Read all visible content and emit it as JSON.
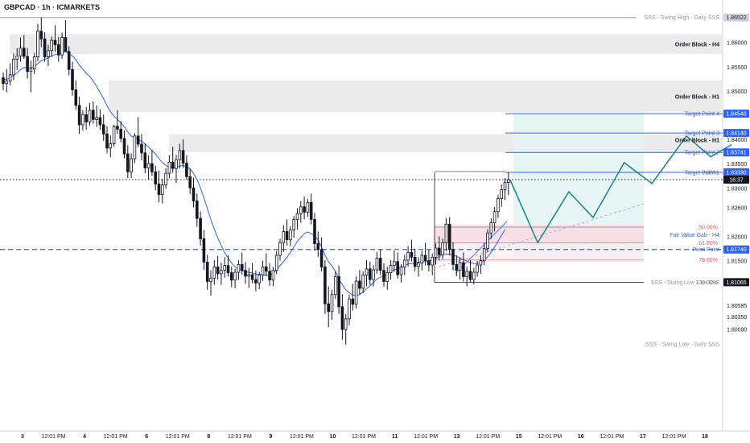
{
  "chart_data": {
    "type": "candlestick",
    "title": "GBPCAD · 1h · ICMARKETS",
    "current_time_label": "16:37",
    "colors": {
      "candle": "#131722",
      "ma_line": "#2962ff",
      "zone_gray": "#ebebeb",
      "zone_pink": "#f7dde3",
      "target_line": "#2962ff",
      "projection": "#138484",
      "target_box": "#e3f4f2",
      "pivot_line": "#2962ff",
      "fib_text": "#f7525f"
    },
    "y_axis": {
      "range": [
        1.78,
        1.8665
      ],
      "ticks": [
        "1.86000",
        "1.85500",
        "1.85000",
        "1.84500",
        "1.84000",
        "1.83500",
        "1.83000",
        "1.82600",
        "1.82000",
        "1.81500",
        "1.81065",
        "1.80585",
        "1.80350",
        "1.80090"
      ]
    },
    "x_axis": {
      "ticks": [
        "3",
        "12:01 PM",
        "4",
        "12:01 PM",
        "6",
        "12:01 PM",
        "8",
        "12:01 PM",
        "9",
        "12:01 PM",
        "10",
        "12:01 PM",
        "11",
        "12:01 PM",
        "13",
        "12:01 PM",
        "15",
        "12:01 PM",
        "16",
        "12:01 PM",
        "17",
        "12:01 PM",
        "18"
      ]
    },
    "price_badges": [
      {
        "value": "1.86522",
        "kind": "gray"
      },
      {
        "value": "1.84540",
        "kind": "blue"
      },
      {
        "value": "1.84140",
        "kind": "blue"
      },
      {
        "value": "1.83741",
        "kind": "blue"
      },
      {
        "value": "1.83330",
        "kind": "blue"
      },
      {
        "value": "16:37",
        "kind": "dark"
      },
      {
        "value": "1.81740",
        "kind": "blue"
      },
      {
        "value": "1.81065",
        "kind": "dark"
      }
    ],
    "annotations": [
      {
        "text": "SSS - Swing High - Daily SSS",
        "kind": "level",
        "price": 1.86522
      },
      {
        "text": "Order Block - H4",
        "kind": "zone",
        "range": [
          1.8577,
          1.8618
        ]
      },
      {
        "text": "Order Block - H1",
        "kind": "zone",
        "range": [
          1.8457,
          1.8522
        ]
      },
      {
        "text": "Target Point 4",
        "kind": "target",
        "price": 1.8454
      },
      {
        "text": "Target Point 3",
        "kind": "target",
        "price": 1.8414
      },
      {
        "text": "Order Block - H1",
        "kind": "zone",
        "range": [
          1.8375,
          1.8412
        ]
      },
      {
        "text": "Target Point 2",
        "kind": "target",
        "price": 1.83741
      },
      {
        "text": "Target Point 1",
        "kind": "target",
        "price": 1.8333
      },
      {
        "text": "0.00%",
        "kind": "fib",
        "price": 1.8333
      },
      {
        "text": "50.00%",
        "kind": "fib",
        "price": 1.822
      },
      {
        "text": "Fair Value Gab - H4",
        "kind": "fvg",
        "range": [
          1.8186,
          1.8224
        ]
      },
      {
        "text": "61.80%",
        "kind": "fib",
        "price": 1.8188
      },
      {
        "text": "Pivot Point",
        "kind": "pivot",
        "price": 1.8174
      },
      {
        "text": "78.60%",
        "kind": "fib",
        "price": 1.8153
      },
      {
        "text": "SSS - Swing Low - 1H SSS",
        "kind": "level",
        "price": 1.81065
      },
      {
        "text": "100.00%",
        "kind": "fib",
        "price": 1.81065
      },
      {
        "text": "SSS - Swing Low - Daily SSS",
        "kind": "level",
        "price": 1.7982
      }
    ],
    "projection_path": [
      {
        "bar": 0,
        "price": 1.8318
      },
      {
        "bar": 8,
        "price": 1.8188
      },
      {
        "bar": 17,
        "price": 1.8293
      },
      {
        "bar": 24,
        "price": 1.824
      },
      {
        "bar": 33,
        "price": 1.8353
      },
      {
        "bar": 41,
        "price": 1.831
      },
      {
        "bar": 51,
        "price": 1.8408
      },
      {
        "bar": 58,
        "price": 1.8365
      },
      {
        "bar": 64,
        "price": 1.839
      }
    ],
    "candles_ohlc": [
      [
        1.8528,
        1.8539,
        1.8502,
        1.8516
      ],
      [
        1.8516,
        1.8546,
        1.8498,
        1.8521
      ],
      [
        1.8521,
        1.8558,
        1.8512,
        1.8534
      ],
      [
        1.8534,
        1.8578,
        1.8523,
        1.8566
      ],
      [
        1.8566,
        1.8589,
        1.8544,
        1.8573
      ],
      [
        1.8573,
        1.8611,
        1.8561,
        1.8589
      ],
      [
        1.8589,
        1.8616,
        1.8567,
        1.8572
      ],
      [
        1.8572,
        1.8589,
        1.8526,
        1.8541
      ],
      [
        1.8541,
        1.8563,
        1.8498,
        1.8546
      ],
      [
        1.8546,
        1.8579,
        1.8536,
        1.8571
      ],
      [
        1.8571,
        1.8639,
        1.8562,
        1.8624
      ],
      [
        1.8624,
        1.8652,
        1.8591,
        1.8608
      ],
      [
        1.8608,
        1.8622,
        1.8561,
        1.8571
      ],
      [
        1.8571,
        1.8596,
        1.8552,
        1.8584
      ],
      [
        1.8584,
        1.8613,
        1.8571,
        1.8605
      ],
      [
        1.8605,
        1.8636,
        1.8582,
        1.8596
      ],
      [
        1.8596,
        1.8612,
        1.8561,
        1.8575
      ],
      [
        1.8575,
        1.8621,
        1.8567,
        1.8611
      ],
      [
        1.8611,
        1.8647,
        1.8596,
        1.8582
      ],
      [
        1.8582,
        1.8593,
        1.8533,
        1.8545
      ],
      [
        1.8545,
        1.8561,
        1.8491,
        1.8503
      ],
      [
        1.8503,
        1.8522,
        1.8462,
        1.8471
      ],
      [
        1.8471,
        1.8489,
        1.8412,
        1.8431
      ],
      [
        1.8431,
        1.8461,
        1.8419,
        1.8452
      ],
      [
        1.8452,
        1.8468,
        1.8421,
        1.8437
      ],
      [
        1.8437,
        1.8476,
        1.8429,
        1.8461
      ],
      [
        1.8461,
        1.8479,
        1.8433,
        1.8442
      ],
      [
        1.8442,
        1.8471,
        1.8427,
        1.8446
      ],
      [
        1.8446,
        1.8463,
        1.8421,
        1.8431
      ],
      [
        1.8431,
        1.8452,
        1.8398,
        1.8412
      ],
      [
        1.8412,
        1.8428,
        1.8372,
        1.8383
      ],
      [
        1.8383,
        1.8409,
        1.8364,
        1.8392
      ],
      [
        1.8392,
        1.8431,
        1.8386,
        1.8428
      ],
      [
        1.8428,
        1.8461,
        1.8412,
        1.8422
      ],
      [
        1.8422,
        1.8439,
        1.8395,
        1.8403
      ],
      [
        1.8403,
        1.8419,
        1.8362,
        1.8371
      ],
      [
        1.8371,
        1.8389,
        1.8321,
        1.8334
      ],
      [
        1.8334,
        1.8372,
        1.8321,
        1.8361
      ],
      [
        1.8361,
        1.8414,
        1.8352,
        1.8408
      ],
      [
        1.8408,
        1.8447,
        1.8385,
        1.8391
      ],
      [
        1.8391,
        1.8412,
        1.8358,
        1.8373
      ],
      [
        1.8373,
        1.8392,
        1.8331,
        1.8342
      ],
      [
        1.8342,
        1.8368,
        1.8318,
        1.8351
      ],
      [
        1.8351,
        1.8379,
        1.8326,
        1.8334
      ],
      [
        1.8334,
        1.8347,
        1.8296,
        1.8309
      ],
      [
        1.8309,
        1.8336,
        1.8271,
        1.8287
      ],
      [
        1.8287,
        1.8319,
        1.8269,
        1.8307
      ],
      [
        1.8307,
        1.8342,
        1.8299,
        1.8331
      ],
      [
        1.8331,
        1.8368,
        1.8321,
        1.8354
      ],
      [
        1.8354,
        1.8386,
        1.8332,
        1.8341
      ],
      [
        1.8341,
        1.8369,
        1.8311,
        1.8359
      ],
      [
        1.8359,
        1.8392,
        1.8341,
        1.8378
      ],
      [
        1.8378,
        1.8401,
        1.8342,
        1.8352
      ],
      [
        1.8352,
        1.8368,
        1.8318,
        1.8324
      ],
      [
        1.8324,
        1.8341,
        1.8288,
        1.8301
      ],
      [
        1.8301,
        1.8322,
        1.8261,
        1.8274
      ],
      [
        1.8274,
        1.8289,
        1.8221,
        1.8238
      ],
      [
        1.8238,
        1.8252,
        1.8182,
        1.8196
      ],
      [
        1.8196,
        1.8214,
        1.8132,
        1.8148
      ],
      [
        1.8148,
        1.8163,
        1.8091,
        1.8108
      ],
      [
        1.8108,
        1.8131,
        1.8079,
        1.8115
      ],
      [
        1.8115,
        1.8152,
        1.8101,
        1.8138
      ],
      [
        1.8138,
        1.8161,
        1.8112,
        1.8124
      ],
      [
        1.8124,
        1.8147,
        1.8101,
        1.8131
      ],
      [
        1.8131,
        1.8158,
        1.8116,
        1.8141
      ],
      [
        1.8141,
        1.8162,
        1.8118,
        1.8126
      ],
      [
        1.8126,
        1.8139,
        1.8096,
        1.8111
      ],
      [
        1.8111,
        1.8134,
        1.8094,
        1.8127
      ],
      [
        1.8127,
        1.8152,
        1.8111,
        1.8143
      ],
      [
        1.8143,
        1.8168,
        1.8122,
        1.8131
      ],
      [
        1.8131,
        1.8148,
        1.8103,
        1.8119
      ],
      [
        1.8119,
        1.8136,
        1.8095,
        1.8122
      ],
      [
        1.8122,
        1.8146,
        1.8104,
        1.8112
      ],
      [
        1.8112,
        1.8131,
        1.8088,
        1.8105
      ],
      [
        1.8105,
        1.8128,
        1.8092,
        1.8121
      ],
      [
        1.8121,
        1.8151,
        1.8109,
        1.8138
      ],
      [
        1.8138,
        1.8166,
        1.8119,
        1.8129
      ],
      [
        1.8129,
        1.8146,
        1.8099,
        1.8111
      ],
      [
        1.8111,
        1.8138,
        1.8098,
        1.8131
      ],
      [
        1.8131,
        1.8171,
        1.8123,
        1.8162
      ],
      [
        1.8162,
        1.8196,
        1.8151,
        1.8188
      ],
      [
        1.8188,
        1.8224,
        1.8169,
        1.8211
      ],
      [
        1.8211,
        1.8236,
        1.8182,
        1.8194
      ],
      [
        1.8194,
        1.8222,
        1.8181,
        1.8214
      ],
      [
        1.8214,
        1.8243,
        1.8198,
        1.8236
      ],
      [
        1.8236,
        1.8259,
        1.8215,
        1.8248
      ],
      [
        1.8248,
        1.8274,
        1.8229,
        1.8262
      ],
      [
        1.8262,
        1.8283,
        1.8236,
        1.8251
      ],
      [
        1.8251,
        1.8278,
        1.8241,
        1.8271
      ],
      [
        1.8271,
        1.8289,
        1.8226,
        1.8236
      ],
      [
        1.8236,
        1.8249,
        1.8172,
        1.8186
      ],
      [
        1.8186,
        1.8211,
        1.8158,
        1.8174
      ],
      [
        1.8174,
        1.8199,
        1.8129,
        1.8138
      ],
      [
        1.8138,
        1.8152,
        1.8041,
        1.8062
      ],
      [
        1.8062,
        1.8098,
        1.8014,
        1.8046
      ],
      [
        1.8046,
        1.8091,
        1.8029,
        1.8081
      ],
      [
        1.8081,
        1.8129,
        1.8072,
        1.8118
      ],
      [
        1.8118,
        1.8141,
        1.8041,
        1.8056
      ],
      [
        1.8056,
        1.8082,
        1.7988,
        1.8009
      ],
      [
        1.8009,
        1.8041,
        1.7978,
        1.8031
      ],
      [
        1.8031,
        1.8081,
        1.8018,
        1.8072
      ],
      [
        1.8072,
        1.8103,
        1.8048,
        1.8061
      ],
      [
        1.8061,
        1.8118,
        1.8052,
        1.8109
      ],
      [
        1.8109,
        1.8132,
        1.8081,
        1.8094
      ],
      [
        1.8094,
        1.8129,
        1.8084,
        1.8121
      ],
      [
        1.8121,
        1.8152,
        1.8098,
        1.8134
      ],
      [
        1.8134,
        1.8149,
        1.8101,
        1.8112
      ],
      [
        1.8112,
        1.8141,
        1.8098,
        1.8132
      ],
      [
        1.8132,
        1.8169,
        1.8124,
        1.8156
      ],
      [
        1.8156,
        1.8174,
        1.8121,
        1.8131
      ],
      [
        1.8131,
        1.8146,
        1.8097,
        1.8108
      ],
      [
        1.8108,
        1.8138,
        1.8091,
        1.8126
      ],
      [
        1.8126,
        1.8152,
        1.8112,
        1.8141
      ],
      [
        1.8141,
        1.8172,
        1.8128,
        1.8149
      ],
      [
        1.8149,
        1.8168,
        1.8114,
        1.8122
      ],
      [
        1.8122,
        1.8144,
        1.8106,
        1.8138
      ],
      [
        1.8138,
        1.8163,
        1.8121,
        1.8152
      ],
      [
        1.8152,
        1.8181,
        1.8139,
        1.8168
      ],
      [
        1.8168,
        1.8194,
        1.8149,
        1.8158
      ],
      [
        1.8158,
        1.8176,
        1.8129,
        1.8139
      ],
      [
        1.8139,
        1.8158,
        1.8118,
        1.8146
      ],
      [
        1.8146,
        1.8171,
        1.8131,
        1.8162
      ],
      [
        1.8162,
        1.8188,
        1.8141,
        1.8151
      ],
      [
        1.8151,
        1.8173,
        1.8129,
        1.8142
      ],
      [
        1.8142,
        1.8166,
        1.8121,
        1.8158
      ],
      [
        1.8158,
        1.8186,
        1.8143,
        1.8177
      ],
      [
        1.8177,
        1.8201,
        1.8151,
        1.8163
      ],
      [
        1.8163,
        1.8196,
        1.8154,
        1.8188
      ],
      [
        1.8188,
        1.8239,
        1.8171,
        1.8226
      ],
      [
        1.8226,
        1.8241,
        1.8162,
        1.8174
      ],
      [
        1.8174,
        1.8189,
        1.8131,
        1.8143
      ],
      [
        1.8143,
        1.8162,
        1.8119,
        1.8131
      ],
      [
        1.8131,
        1.8158,
        1.8112,
        1.8147
      ],
      [
        1.8147,
        1.8168,
        1.8108,
        1.8118
      ],
      [
        1.8118,
        1.8139,
        1.8098,
        1.8129
      ],
      [
        1.8129,
        1.8152,
        1.8106,
        1.8112
      ],
      [
        1.8112,
        1.8136,
        1.8102,
        1.8127
      ],
      [
        1.8127,
        1.8151,
        1.8118,
        1.8142
      ],
      [
        1.8142,
        1.8162,
        1.8124,
        1.8151
      ],
      [
        1.8151,
        1.8188,
        1.8142,
        1.8176
      ],
      [
        1.8176,
        1.8216,
        1.8168,
        1.8208
      ],
      [
        1.8208,
        1.8238,
        1.8196,
        1.8229
      ],
      [
        1.8229,
        1.8261,
        1.8211,
        1.8252
      ],
      [
        1.8252,
        1.8286,
        1.8239,
        1.8279
      ],
      [
        1.8279,
        1.8308,
        1.8262,
        1.8297
      ],
      [
        1.8297,
        1.8321,
        1.8276,
        1.8312
      ],
      [
        1.8312,
        1.8333,
        1.8286,
        1.8318
      ]
    ],
    "ma_values": [
      1.8523,
      1.8525,
      1.8528,
      1.8533,
      1.8538,
      1.8545,
      1.8549,
      1.8549,
      1.8549,
      1.8551,
      1.8557,
      1.8563,
      1.8566,
      1.8569,
      1.8573,
      1.8576,
      1.8576,
      1.858,
      1.8582,
      1.8578,
      1.8573,
      1.8565,
      1.8554,
      1.8546,
      1.8537,
      1.8531,
      1.8521,
      1.851,
      1.8498,
      1.8485,
      1.847,
      1.8458,
      1.8449,
      1.8442,
      1.8435,
      1.8427,
      1.8416,
      1.8408,
      1.8404,
      1.8401,
      1.8397,
      1.8391,
      1.8385,
      1.8378,
      1.8371,
      1.8362,
      1.8353,
      1.8347,
      1.8344,
      1.8343,
      1.8343,
      1.8346,
      1.8347,
      1.8345,
      1.834,
      1.8331,
      1.8318,
      1.8301,
      1.828,
      1.8258,
      1.8236,
      1.8216,
      1.8198,
      1.8182,
      1.8168,
      1.8156,
      1.8146,
      1.8138,
      1.8133,
      1.813,
      1.8128,
      1.8127,
      1.8125,
      1.8123,
      1.8123,
      1.8123,
      1.8121,
      1.8121,
      1.8125,
      1.8132,
      1.8141,
      1.8149,
      1.8158,
      1.8168,
      1.8179,
      1.8191,
      1.8199,
      1.8207,
      1.821,
      1.8207,
      1.8202,
      1.8194,
      1.8179,
      1.8162,
      1.8149,
      1.814,
      1.8129,
      1.8114,
      1.8101,
      1.8091,
      1.8085,
      1.808,
      1.8079,
      1.8081,
      1.8086,
      1.8093,
      1.8099,
      1.8106,
      1.8113,
      1.8117,
      1.8119,
      1.8123,
      1.8128,
      1.8132,
      1.8134,
      1.8137,
      1.8141,
      1.8144,
      1.8145,
      1.8146,
      1.8148,
      1.8149,
      1.8149,
      1.815,
      1.8153,
      1.8155,
      1.8159,
      1.8165,
      1.8165,
      1.8164,
      1.8162,
      1.816,
      1.8156,
      1.8153,
      1.815,
      1.8147,
      1.8145,
      1.8145,
      1.8147,
      1.8152,
      1.8159,
      1.8168,
      1.8179,
      1.8191,
      1.8203,
      1.8215
    ]
  }
}
